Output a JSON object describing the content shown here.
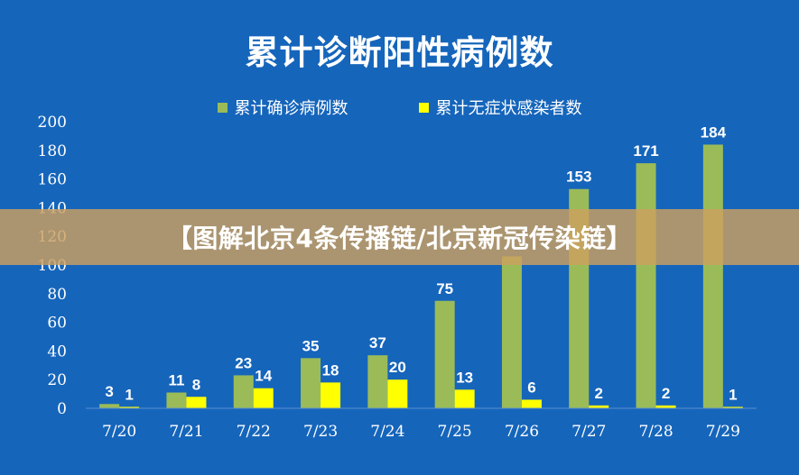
{
  "colors": {
    "background": "#1565bb",
    "confirmed": "#9bbb59",
    "asymptomatic": "#ffff00",
    "text": "#ffffff",
    "banner": "#cda05f"
  },
  "banner": {
    "text": "【图解北京4条传播链/北京新冠传染链】"
  },
  "chart_data": {
    "type": "bar",
    "title": "累计诊断阳性病例数",
    "xlabel": "",
    "ylabel": "",
    "categories": [
      "7/20",
      "7/21",
      "7/22",
      "7/23",
      "7/24",
      "7/25",
      "7/26",
      "7/27",
      "7/28",
      "7/29"
    ],
    "series": [
      {
        "name": "累计确诊病例数",
        "values": [
          3,
          11,
          23,
          35,
          37,
          75,
          106,
          153,
          171,
          184
        ],
        "labels": [
          "3",
          "11",
          "23",
          "35",
          "37",
          "75",
          "",
          "153",
          "171",
          "184"
        ]
      },
      {
        "name": "累计无症状感染者数",
        "values": [
          1,
          8,
          14,
          18,
          20,
          13,
          6,
          2,
          2,
          1
        ],
        "labels": [
          "1",
          "8",
          "14",
          "18",
          "20",
          "13",
          "6",
          "2",
          "2",
          "1"
        ]
      }
    ],
    "ylim": [
      0,
      200
    ],
    "yticks": [
      0,
      20,
      40,
      60,
      80,
      100,
      120,
      140,
      160,
      180,
      200
    ],
    "grid": false,
    "legend": "top-center"
  }
}
